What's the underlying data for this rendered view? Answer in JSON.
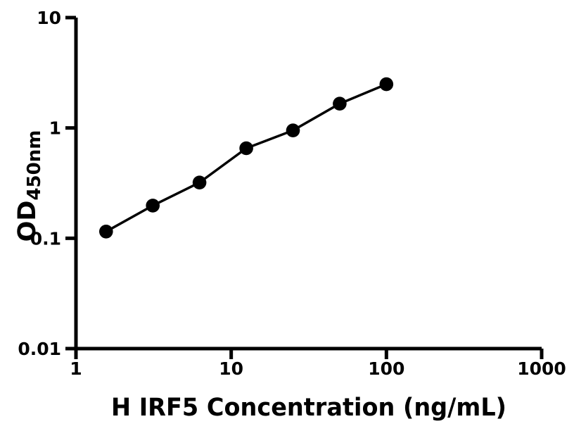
{
  "figure": {
    "background": "#ffffff",
    "ink": "#000000"
  },
  "chart_data": {
    "type": "scatter",
    "title": "",
    "xlabel": "H IRF5 Concentration (ng/mL)",
    "ylabel": "OD450nm",
    "ylabel_main": "OD",
    "ylabel_sub": "450nm",
    "xscale": "log",
    "yscale": "log",
    "xlim": [
      1,
      1000
    ],
    "ylim": [
      0.01,
      10
    ],
    "grid": false,
    "legend": "none",
    "xticks": {
      "values": [
        1,
        10,
        100,
        1000
      ],
      "labels": [
        "1",
        "10",
        "100",
        "1000"
      ]
    },
    "yticks": {
      "values": [
        10,
        1,
        0.1,
        0.01
      ],
      "labels": [
        "10",
        "1",
        "0.1",
        "0.01"
      ]
    },
    "series": [
      {
        "marker": "filled-circle",
        "marker_color": "#000000",
        "line_color": "#000000",
        "x": [
          1.5625,
          3.125,
          6.25,
          12.5,
          25,
          50,
          100
        ],
        "y": [
          0.115,
          0.198,
          0.32,
          0.655,
          0.95,
          1.66,
          2.49
        ]
      }
    ]
  }
}
